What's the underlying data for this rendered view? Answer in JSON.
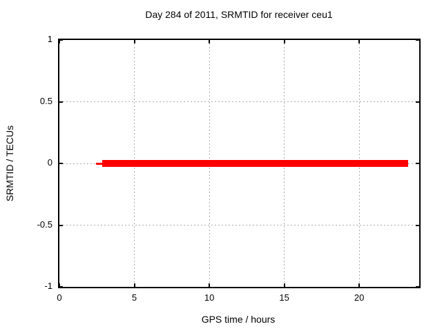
{
  "chart_data": {
    "type": "line",
    "title": "Day 284 of 2011, SRMTID for receiver ceu1",
    "xlabel": "GPS time / hours",
    "ylabel": "SRMTID / TECUs",
    "xlim": [
      0,
      24
    ],
    "ylim": [
      -1,
      1
    ],
    "xticks": [
      0,
      5,
      10,
      15,
      20
    ],
    "xtick_labels": [
      "0",
      "5",
      "10",
      "15",
      "20"
    ],
    "yticks": [
      1,
      0.5,
      0,
      -0.5,
      -1
    ],
    "ytick_labels": [
      "1",
      "0.5",
      "0",
      "-0.5",
      "-1"
    ],
    "grid": true,
    "grid_color": "#aaaaaa",
    "axis_color": "#000000",
    "background": "#ffffff",
    "legend": "none",
    "series": [
      {
        "name": "SRMTID",
        "color": "#ff0000",
        "y_constant": 0,
        "x_start": 2.5,
        "x_end": 23.2,
        "note": "constant zero value across the day",
        "segments": [
          {
            "x1": 2.45,
            "x2": 2.85,
            "y": 0,
            "weight": "thin"
          },
          {
            "x1": 2.85,
            "x2": 23.25,
            "y": 0,
            "weight": "thick"
          }
        ]
      }
    ]
  }
}
